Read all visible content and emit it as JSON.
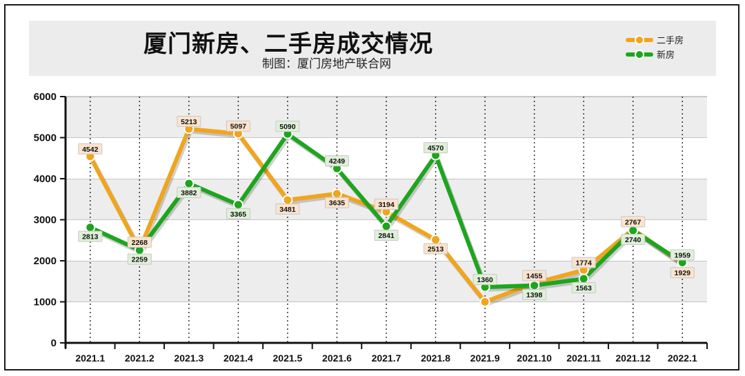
{
  "chart_data": {
    "type": "line",
    "title": "厦门新房、二手房成交情况",
    "subtitle": "制图：厦门房地产联合网",
    "categories": [
      "2021.1",
      "2021.2",
      "2021.3",
      "2021.4",
      "2021.5",
      "2021.6",
      "2021.7",
      "2021.8",
      "2021.9",
      "2021.10",
      "2021.11",
      "2021.12",
      "2022.1"
    ],
    "series": [
      {
        "name": "二手房",
        "color": "#f0a51c",
        "label_bg": "#fbe3cd",
        "values": [
          4542,
          2268,
          5213,
          5097,
          3481,
          3635,
          3194,
          2513,
          1000,
          1455,
          1774,
          2767,
          1929
        ]
      },
      {
        "name": "新房",
        "color": "#1ea51e",
        "label_bg": "#dff0d8",
        "values": [
          2813,
          2259,
          3882,
          3365,
          5090,
          4249,
          2841,
          4570,
          1360,
          1398,
          1563,
          2740,
          1959
        ]
      }
    ],
    "data_labels": {
      "二手房": [
        "4542",
        "2268",
        "5213",
        "5097",
        "3481",
        "3635",
        "3194",
        "2513",
        "",
        "1455",
        "1774",
        "2767",
        "1929"
      ],
      "新房": [
        "2813",
        "2259",
        "3882",
        "3365",
        "5090",
        "4249",
        "2841",
        "4570",
        "1360",
        "1398",
        "1563",
        "2740",
        "1959"
      ]
    },
    "y_ticks": [
      "0",
      "1000",
      "2000",
      "3000",
      "4000",
      "5000",
      "6000"
    ],
    "ylim": [
      0,
      6000
    ],
    "grid": true,
    "legend_position": "top-right"
  }
}
